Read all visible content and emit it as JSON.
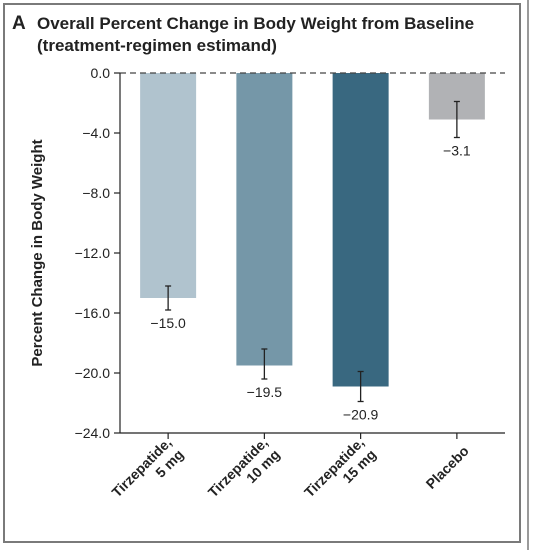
{
  "panel": {
    "letter": "A"
  },
  "chart_data": {
    "type": "bar",
    "title": "Overall Percent Change in Body Weight from Baseline",
    "subtitle": "(treatment-regimen estimand)",
    "ylabel": "Percent Change in Body Weight",
    "xlabel": "",
    "ylim": [
      -24.0,
      0.0
    ],
    "yticks": [
      0.0,
      -4.0,
      -8.0,
      -12.0,
      -16.0,
      -20.0,
      -24.0
    ],
    "ytick_labels": [
      "0.0",
      "−4.0",
      "−8.0",
      "−12.0",
      "−16.0",
      "−20.0",
      "−24.0"
    ],
    "reference_line": {
      "y": 0.0,
      "style": "dashed"
    },
    "categories": [
      [
        "Tirzepatide,",
        "5 mg"
      ],
      [
        "Tirzepatide,",
        "10 mg"
      ],
      [
        "Tirzepatide,",
        "15 mg"
      ],
      [
        "Placebo"
      ]
    ],
    "values": [
      -15.0,
      -19.5,
      -20.9,
      -3.1
    ],
    "value_labels": [
      "−15.0",
      "−19.5",
      "−20.9",
      "−3.1"
    ],
    "error_bars": [
      [
        -15.8,
        -14.2
      ],
      [
        -20.4,
        -18.4
      ],
      [
        -21.9,
        -19.9
      ],
      [
        -4.3,
        -1.9
      ]
    ],
    "colors": [
      "#b0c3ce",
      "#7597a8",
      "#396880",
      "#b1b2b5"
    ],
    "grid": false,
    "legend": "none"
  }
}
